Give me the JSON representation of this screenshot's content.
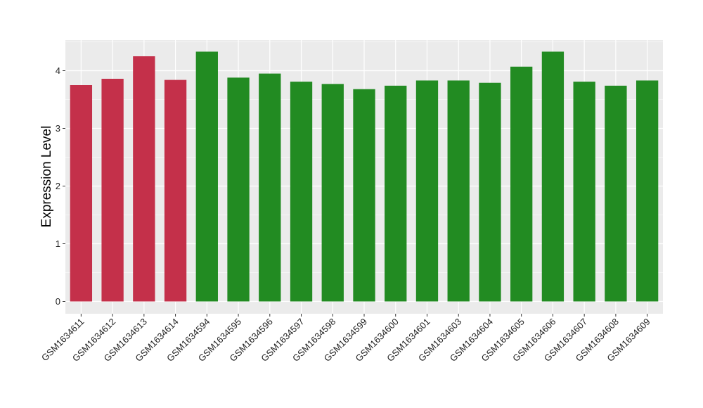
{
  "chart_data": {
    "type": "bar",
    "title": "",
    "xlabel": "",
    "ylabel": "Expression Level",
    "ylim": [
      0,
      4.5
    ],
    "yticks": [
      0,
      1,
      2,
      3,
      4
    ],
    "grid": true,
    "legend": "none",
    "categories": [
      "GSM1634611",
      "GSM1634612",
      "GSM1634613",
      "GSM1634614",
      "GSM1634594",
      "GSM1634595",
      "GSM1634596",
      "GSM1634597",
      "GSM1634598",
      "GSM1634599",
      "GSM1634600",
      "GSM1634601",
      "GSM1634603",
      "GSM1634604",
      "GSM1634605",
      "GSM1634606",
      "GSM1634607",
      "GSM1634608",
      "GSM1634609"
    ],
    "values": [
      3.75,
      3.86,
      4.25,
      3.84,
      4.33,
      3.88,
      3.95,
      3.81,
      3.77,
      3.68,
      3.74,
      3.83,
      3.83,
      3.79,
      4.07,
      4.33,
      3.81,
      3.74,
      3.83
    ],
    "bar_colors": [
      "#c4304a",
      "#c4304a",
      "#c4304a",
      "#c4304a",
      "#228b22",
      "#228b22",
      "#228b22",
      "#228b22",
      "#228b22",
      "#228b22",
      "#228b22",
      "#228b22",
      "#228b22",
      "#228b22",
      "#228b22",
      "#228b22",
      "#228b22",
      "#228b22",
      "#228b22"
    ],
    "panel_background": "#ebebeb",
    "grid_color": "#ffffff"
  }
}
